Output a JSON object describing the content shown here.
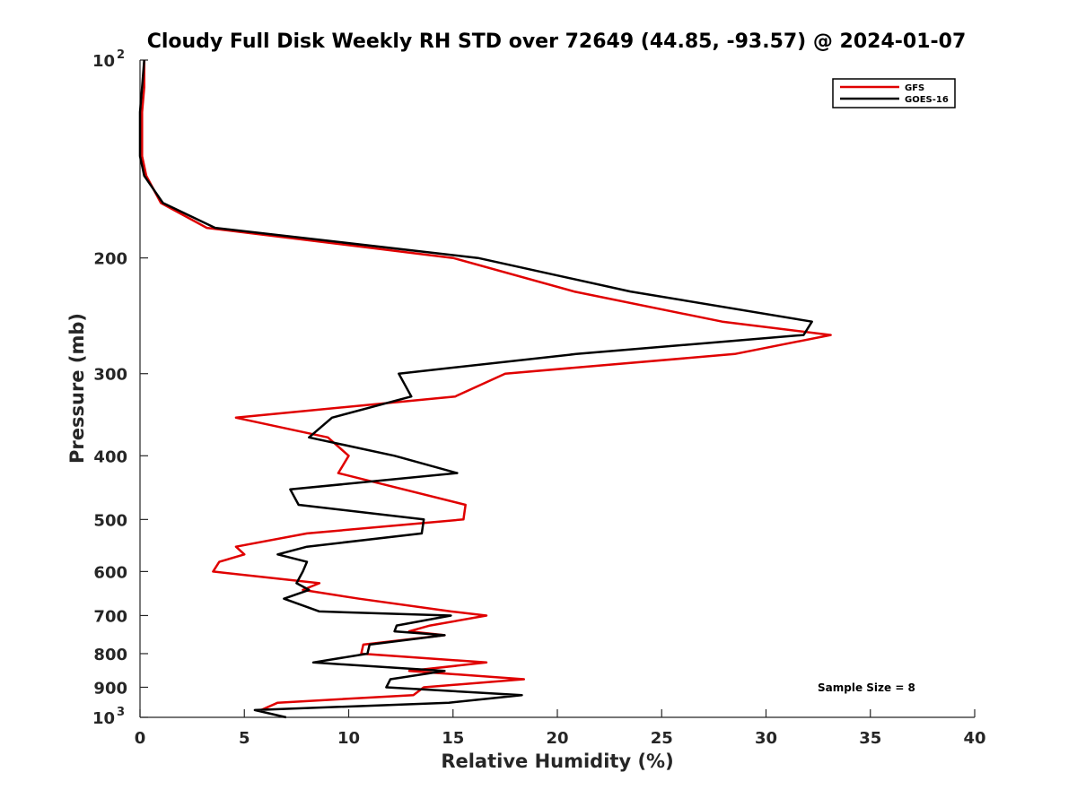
{
  "chart_data": {
    "type": "line",
    "title": "Cloudy Full Disk Weekly RH STD over 72649 (44.85, -93.57) @ 2024-01-07",
    "xlabel": "Relative Humidity (%)",
    "ylabel": "Pressure (mb)",
    "xlim": [
      0,
      40
    ],
    "ylim": [
      100,
      1000
    ],
    "yscale": "log",
    "y_reversed": true,
    "grid": false,
    "legend": "top-right",
    "x_ticks": [
      0,
      5,
      10,
      15,
      20,
      25,
      30,
      35,
      40
    ],
    "y_ticks": [
      {
        "value": 100,
        "label": "10",
        "sup": "2"
      },
      {
        "value": 200,
        "label": "200"
      },
      {
        "value": 300,
        "label": "300"
      },
      {
        "value": 400,
        "label": "400"
      },
      {
        "value": 500,
        "label": "500"
      },
      {
        "value": 600,
        "label": "600"
      },
      {
        "value": 700,
        "label": "700"
      },
      {
        "value": 800,
        "label": "800"
      },
      {
        "value": 900,
        "label": "900"
      },
      {
        "value": 1000,
        "label": "10",
        "sup": "3"
      }
    ],
    "annotation": "Sample Size = 8",
    "series": [
      {
        "name": "GFS",
        "color": "#e00000",
        "points": [
          [
            0.2,
            100
          ],
          [
            0.2,
            110
          ],
          [
            0.1,
            120
          ],
          [
            0.1,
            130
          ],
          [
            0.1,
            140
          ],
          [
            0.3,
            150
          ],
          [
            1.0,
            165
          ],
          [
            3.2,
            180
          ],
          [
            15.0,
            200
          ],
          [
            20.8,
            225
          ],
          [
            27.9,
            250
          ],
          [
            33.1,
            262
          ],
          [
            28.5,
            280
          ],
          [
            17.5,
            300
          ],
          [
            15.1,
            325
          ],
          [
            4.6,
            350
          ],
          [
            9.0,
            375
          ],
          [
            10.0,
            400
          ],
          [
            9.5,
            425
          ],
          [
            15.6,
            475
          ],
          [
            15.5,
            500
          ],
          [
            8.0,
            525
          ],
          [
            4.6,
            550
          ],
          [
            5.0,
            565
          ],
          [
            3.8,
            580
          ],
          [
            3.5,
            600
          ],
          [
            8.6,
            625
          ],
          [
            7.8,
            640
          ],
          [
            10.5,
            660
          ],
          [
            14.9,
            690
          ],
          [
            16.6,
            700
          ],
          [
            13.9,
            725
          ],
          [
            12.9,
            740
          ],
          [
            14.6,
            750
          ],
          [
            10.7,
            775
          ],
          [
            10.6,
            800
          ],
          [
            16.6,
            825
          ],
          [
            12.9,
            850
          ],
          [
            18.4,
            875
          ],
          [
            13.6,
            900
          ],
          [
            13.1,
            925
          ],
          [
            6.6,
            950
          ],
          [
            5.8,
            975
          ]
        ]
      },
      {
        "name": "GOES-16",
        "color": "#000000",
        "points": [
          [
            0.2,
            100
          ],
          [
            0.1,
            110
          ],
          [
            0.0,
            120
          ],
          [
            0.0,
            130
          ],
          [
            0.0,
            140
          ],
          [
            0.2,
            150
          ],
          [
            1.1,
            165
          ],
          [
            3.6,
            180
          ],
          [
            16.2,
            200
          ],
          [
            23.5,
            225
          ],
          [
            32.2,
            250
          ],
          [
            31.8,
            262
          ],
          [
            20.9,
            280
          ],
          [
            12.4,
            300
          ],
          [
            13.0,
            325
          ],
          [
            9.2,
            350
          ],
          [
            8.1,
            375
          ],
          [
            12.2,
            400
          ],
          [
            15.2,
            425
          ],
          [
            7.2,
            450
          ],
          [
            7.6,
            475
          ],
          [
            13.6,
            500
          ],
          [
            13.5,
            525
          ],
          [
            8.0,
            550
          ],
          [
            6.6,
            565
          ],
          [
            8.0,
            580
          ],
          [
            7.8,
            600
          ],
          [
            7.5,
            625
          ],
          [
            8.1,
            640
          ],
          [
            6.9,
            660
          ],
          [
            8.6,
            690
          ],
          [
            14.9,
            700
          ],
          [
            12.3,
            725
          ],
          [
            12.2,
            740
          ],
          [
            14.6,
            750
          ],
          [
            11.0,
            775
          ],
          [
            10.9,
            800
          ],
          [
            8.3,
            825
          ],
          [
            14.6,
            850
          ],
          [
            12.0,
            875
          ],
          [
            11.8,
            900
          ],
          [
            18.3,
            925
          ],
          [
            14.8,
            950
          ],
          [
            5.5,
            975
          ],
          [
            7.0,
            1000
          ]
        ]
      }
    ]
  }
}
